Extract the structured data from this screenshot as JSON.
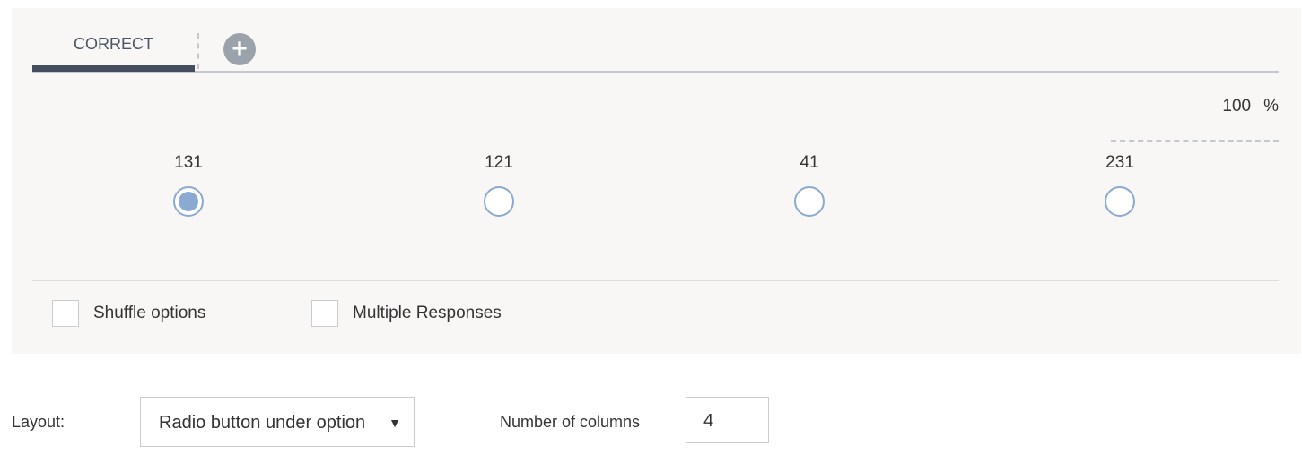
{
  "tabs": [
    {
      "label": "CORRECT",
      "active": true
    }
  ],
  "add_tab_icon": "plus-circle-icon",
  "score": {
    "value": "100",
    "unit": "%"
  },
  "options": [
    {
      "label": "131",
      "selected": true
    },
    {
      "label": "121",
      "selected": false
    },
    {
      "label": "41",
      "selected": false
    },
    {
      "label": "231",
      "selected": false
    }
  ],
  "checkboxes": {
    "shuffle": {
      "label": "Shuffle options",
      "checked": false
    },
    "multiple": {
      "label": "Multiple Responses",
      "checked": false
    }
  },
  "layout": {
    "label": "Layout:",
    "value": "Radio button under option"
  },
  "columns": {
    "label": "Number of columns",
    "value": "4"
  },
  "colors": {
    "accent": "#8aaad2",
    "tab_active": "#444f5d"
  }
}
